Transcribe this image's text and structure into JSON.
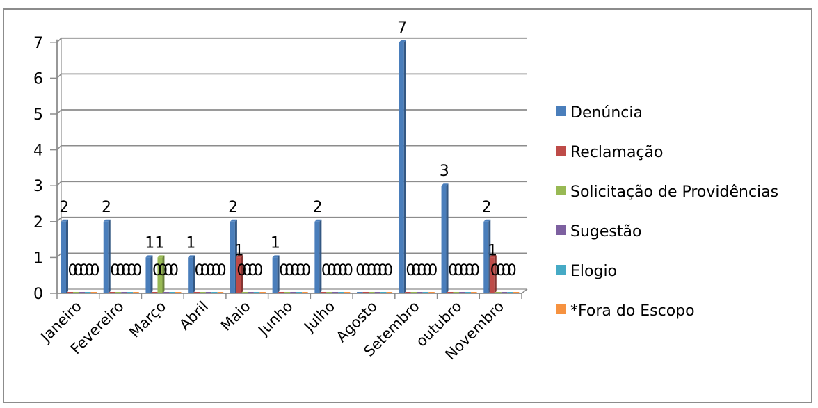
{
  "chart_data": {
    "type": "bar",
    "title": "",
    "xlabel": "",
    "ylabel": "",
    "ylim": [
      0,
      7
    ],
    "yticks": [
      0,
      1,
      2,
      3,
      4,
      5,
      6,
      7
    ],
    "grid": true,
    "legend_position": "right",
    "categories": [
      "Janeiro",
      "Fevereiro",
      "Março",
      "Abril",
      "Maio",
      "Junho",
      "Julho",
      "Agosto",
      "Setembro",
      "outubro",
      "Novembro"
    ],
    "series": [
      {
        "name": "Denúncia",
        "color": "#4a7ebb",
        "values": [
          2,
          2,
          1,
          1,
          2,
          1,
          2,
          0,
          7,
          3,
          2
        ]
      },
      {
        "name": "Reclamação",
        "color": "#be4b48",
        "values": [
          0,
          0,
          0,
          0,
          1,
          0,
          0,
          0,
          0,
          0,
          1
        ]
      },
      {
        "name": "Solicitação de Providências",
        "color": "#98b954",
        "values": [
          0,
          0,
          1,
          0,
          0,
          0,
          0,
          0,
          0,
          0,
          0
        ]
      },
      {
        "name": "Sugestão",
        "color": "#7d60a0",
        "values": [
          0,
          0,
          0,
          0,
          0,
          0,
          0,
          0,
          0,
          0,
          0
        ]
      },
      {
        "name": "Elogio",
        "color": "#46aac5",
        "values": [
          0,
          0,
          0,
          0,
          0,
          0,
          0,
          0,
          0,
          0,
          0
        ]
      },
      {
        "name": "*Fora do Escopo",
        "color": "#f69240",
        "values": [
          0,
          0,
          0,
          0,
          0,
          0,
          0,
          0,
          0,
          0,
          0
        ]
      }
    ]
  }
}
